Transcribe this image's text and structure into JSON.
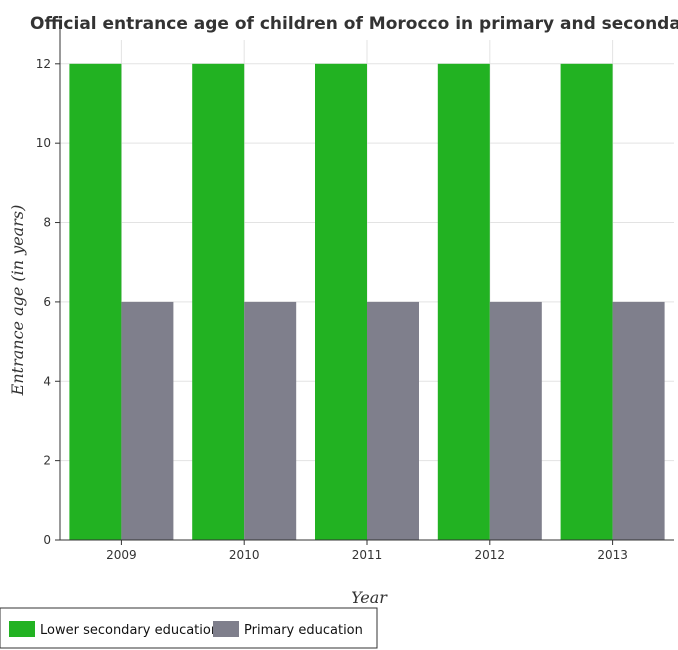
{
  "chart_data": {
    "type": "bar",
    "title": "Official entrance age of children of Morocco in primary and secondary education",
    "xlabel": "Year",
    "ylabel": "Entrance age (in  years)",
    "categories": [
      "2009",
      "2010",
      "2011",
      "2012",
      "2013"
    ],
    "series": [
      {
        "name": "Lower secondary education",
        "values": [
          12,
          12,
          12,
          12,
          12
        ],
        "color": "#22b222"
      },
      {
        "name": "Primary education",
        "values": [
          6,
          6,
          6,
          6,
          6
        ],
        "color": "#7f7f8c"
      }
    ],
    "ylim": [
      0,
      12.6
    ],
    "yticks": [
      0,
      2,
      4,
      6,
      8,
      10,
      12
    ],
    "grid": true,
    "legend_position": "bottom-left"
  }
}
